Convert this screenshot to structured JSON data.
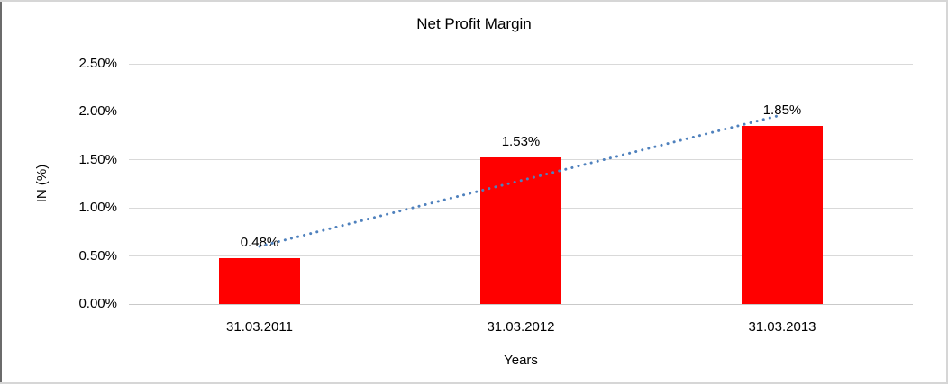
{
  "chart_data": {
    "type": "bar",
    "title": "Net Profit Margin",
    "xlabel": "Years",
    "ylabel": "IN (%)",
    "categories": [
      "31.03.2011",
      "31.03.2012",
      "31.03.2013"
    ],
    "values": [
      0.48,
      1.53,
      1.85
    ],
    "data_labels": [
      "0.48%",
      "1.53%",
      "1.85%"
    ],
    "ylim": [
      0,
      2.5
    ],
    "ytick_step": 0.5,
    "ytick_labels": [
      "0.00%",
      "0.50%",
      "1.00%",
      "1.50%",
      "2.00%",
      "2.50%"
    ],
    "grid": true,
    "legend": "none",
    "bar_color": "#FF0000",
    "gridline_color": "#D9D9D9",
    "axis_line_color": "#C9C9C9",
    "trendline": {
      "type": "linear",
      "style": "dotted",
      "color": "#4F81BD",
      "start_value": 0.6,
      "end_value": 1.97
    }
  }
}
